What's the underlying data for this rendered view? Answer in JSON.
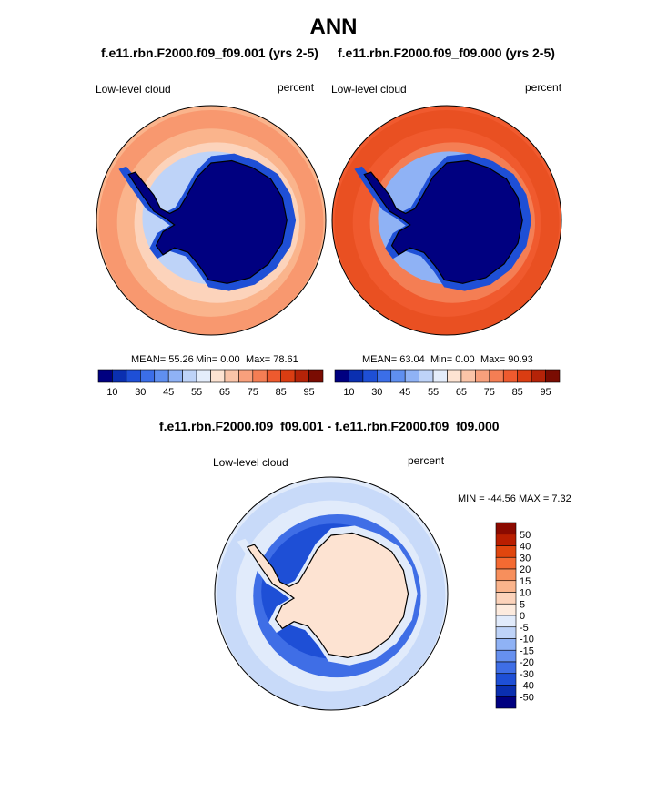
{
  "page_title": "ANN",
  "panels": [
    {
      "title": "f.e11.rbn.F2000.f09_f09.001 (yrs 2-5)",
      "left_label": "Low-level cloud",
      "right_label": "percent",
      "stats": {
        "mean": "MEAN= 55.26",
        "min": "Min= 0.00",
        "max": "Max= 78.61"
      }
    },
    {
      "title": "f.e11.rbn.F2000.f09_f09.000 (yrs 2-5)",
      "left_label": "Low-level cloud",
      "right_label": "percent",
      "stats": {
        "mean": "MEAN= 63.04",
        "min": "Min= 0.00",
        "max": "Max= 90.93"
      }
    }
  ],
  "diff_panel": {
    "title": "f.e11.rbn.F2000.f09_f09.001 - f.e11.rbn.F2000.f09_f09.000",
    "left_label": "Low-level cloud",
    "right_label": "percent",
    "minmax": "MIN = -44.56 MAX = 7.32"
  },
  "colorbar_top": {
    "labels": [
      "10",
      "30",
      "45",
      "55",
      "65",
      "75",
      "85",
      "95"
    ],
    "colors": [
      "#000080",
      "#0a2fb0",
      "#1e4fd6",
      "#3b6ee8",
      "#5f8ff0",
      "#8fb2f5",
      "#bed3f8",
      "#e4edfb",
      "#fde3d2",
      "#fac4a8",
      "#f8a07c",
      "#f47e54",
      "#ee5a2e",
      "#da3d12",
      "#b52308",
      "#7a0c02"
    ]
  },
  "colorbar_diff": {
    "labels": [
      "50",
      "40",
      "30",
      "20",
      "15",
      "10",
      "5",
      "0",
      "-5",
      "-10",
      "-15",
      "-20",
      "-30",
      "-40",
      "-50"
    ],
    "colors": [
      "#8b0a00",
      "#b91e00",
      "#e0460e",
      "#f46a32",
      "#f78f5c",
      "#fab48c",
      "#fcd3bb",
      "#fdebde",
      "#e1ebfb",
      "#bed3f8",
      "#8fb2f5",
      "#6690ef",
      "#3f6ee6",
      "#1e4fd6",
      "#0a2fb0",
      "#000080"
    ]
  },
  "fields": {
    "left_map": {
      "ocean": "#fab48c",
      "outer_ring": "#f68c62",
      "inner_ring": "#fcd3bb",
      "sea_ice": "#bed3f8",
      "coast_band": "#1e4fd6",
      "continent": "#000080"
    },
    "right_map": {
      "ocean": "#f05a2e",
      "outer_ring": "#e64b1e",
      "inner_ring": "#f47e54",
      "sea_ice": "#8fb2f5",
      "coast_band": "#1e4fd6",
      "continent": "#000080"
    },
    "diff_map": {
      "ocean": "#e1ebfb",
      "outer_ring": "#bed3f8",
      "inner_ring": "#3f6ee6",
      "sea_ice": "#1e4fd6",
      "coast_band": "#e1ebfb",
      "continent": "#fde3d2"
    }
  }
}
